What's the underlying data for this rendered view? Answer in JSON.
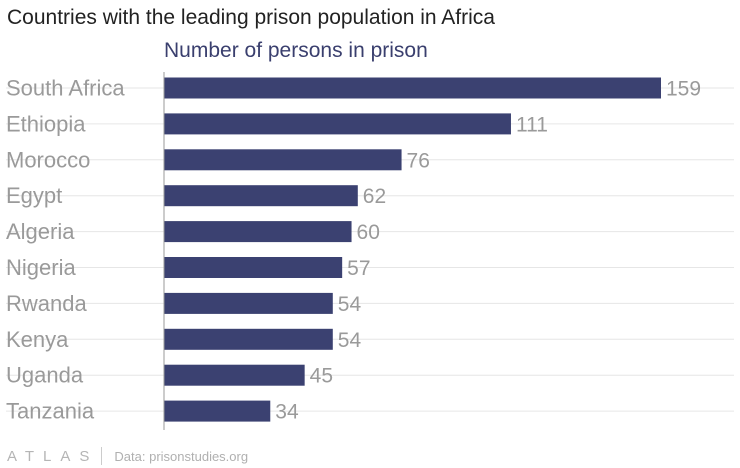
{
  "chart_data": {
    "type": "bar",
    "orientation": "horizontal",
    "title": "Countries with the leading prison population in Africa",
    "subtitle": "Number of persons in prison",
    "categories": [
      "South Africa",
      "Ethiopia",
      "Morocco",
      "Egypt",
      "Algeria",
      "Nigeria",
      "Rwanda",
      "Kenya",
      "Uganda",
      "Tanzania"
    ],
    "values": [
      159,
      111,
      76,
      62,
      60,
      57,
      54,
      54,
      45,
      34
    ],
    "data_labels": [
      "159",
      "111",
      "76",
      "62",
      "60",
      "57",
      "54",
      "54",
      "45",
      "34"
    ],
    "xlim": [
      0,
      159
    ],
    "grid": true,
    "bar_color": "#3b4171"
  },
  "footer": {
    "logo": "ATLAS",
    "source": "Data: prisonstudies.org"
  }
}
